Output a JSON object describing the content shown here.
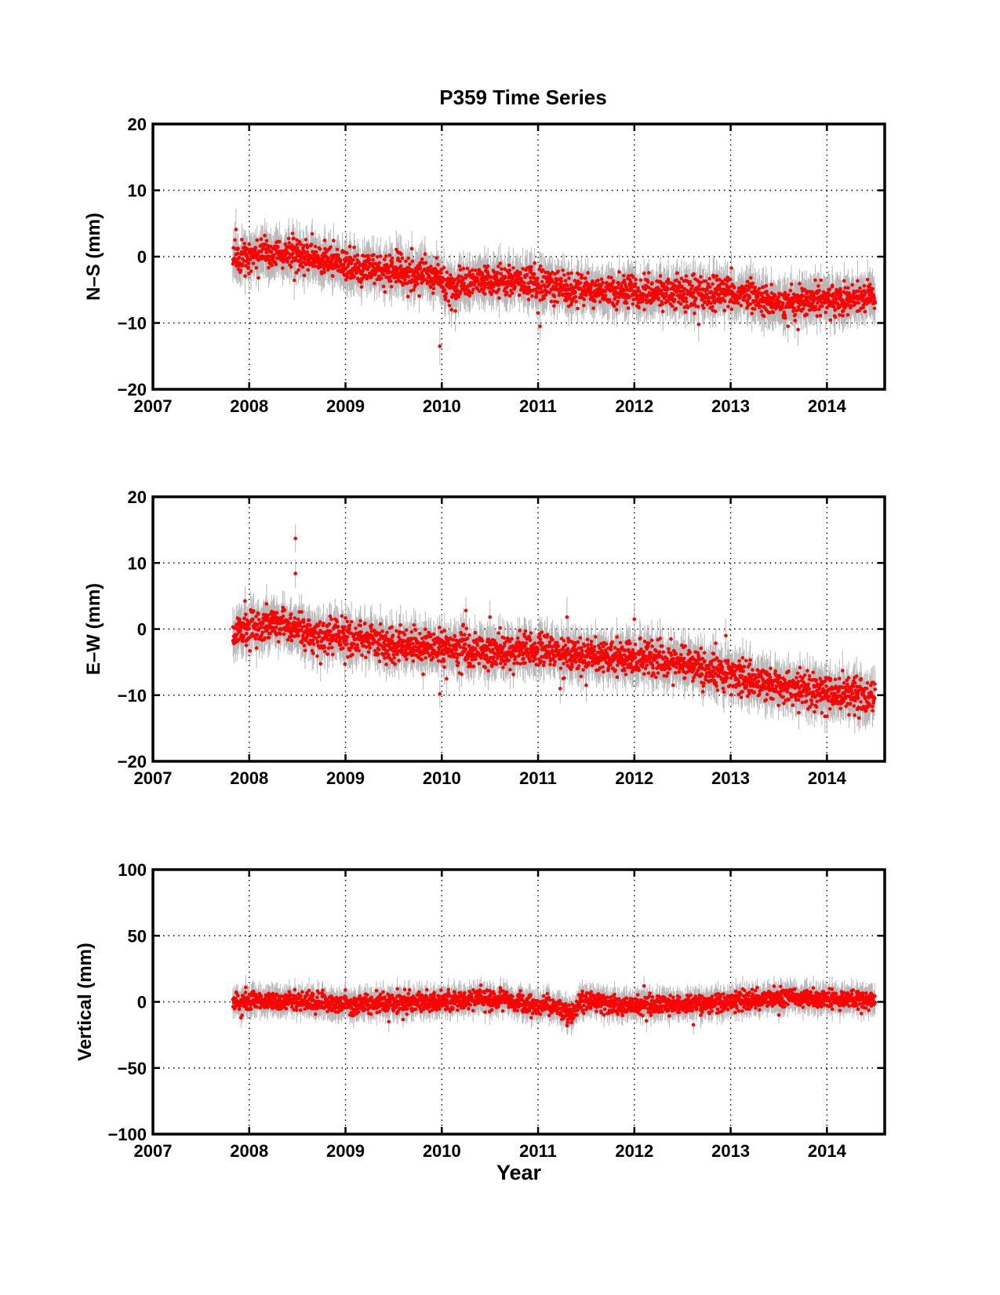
{
  "title": "P359 Time Series",
  "colors": {
    "points": "#ff0000",
    "error_bars": "#b8b8b8",
    "axes": "#000000",
    "grid": "#000000"
  },
  "chart_data": [
    {
      "type": "scatter",
      "ylabel": "N–S (mm)",
      "xlim": [
        2007,
        2014.6
      ],
      "ylim": [
        -20,
        20
      ],
      "xticks": [
        2007,
        2008,
        2009,
        2010,
        2011,
        2012,
        2013,
        2014
      ],
      "xtick_labels": [
        "2007",
        "2008",
        "2009",
        "2010",
        "2011",
        "2012",
        "2013",
        "2014"
      ],
      "yticks": [
        -20,
        -10,
        0,
        10,
        20
      ],
      "ytick_labels": [
        "−20",
        "−10",
        "0",
        "10",
        "20"
      ],
      "grid": "dotted",
      "error_bar_sigma": 2.5,
      "x_range": [
        2007.83,
        2014.5
      ],
      "trend": [
        [
          2007.83,
          0.0
        ],
        [
          2008.5,
          0.5
        ],
        [
          2009.0,
          -1.5
        ],
        [
          2009.95,
          -3.0
        ],
        [
          2010.05,
          -4.5
        ],
        [
          2010.5,
          -3.5
        ],
        [
          2011.0,
          -4.0
        ],
        [
          2011.5,
          -5.0
        ],
        [
          2012.0,
          -5.5
        ],
        [
          2012.5,
          -5.5
        ],
        [
          2013.0,
          -5.5
        ],
        [
          2013.5,
          -7.0
        ],
        [
          2014.0,
          -6.5
        ],
        [
          2014.5,
          -6.0
        ]
      ],
      "scatter": 1.2,
      "outliers": [
        [
          2009.98,
          -13.5
        ],
        [
          2011.02,
          -10.5
        ],
        [
          2011.0,
          -8.5
        ],
        [
          2013.7,
          -11.0
        ],
        [
          2008.45,
          3.5
        ],
        [
          2010.1,
          -8.0
        ]
      ]
    },
    {
      "type": "scatter",
      "ylabel": "E–W (mm)",
      "xlim": [
        2007,
        2014.6
      ],
      "ylim": [
        -20,
        20
      ],
      "xticks": [
        2007,
        2008,
        2009,
        2010,
        2011,
        2012,
        2013,
        2014
      ],
      "xtick_labels": [
        "2007",
        "2008",
        "2009",
        "2010",
        "2011",
        "2012",
        "2013",
        "2014"
      ],
      "yticks": [
        -20,
        -10,
        0,
        10,
        20
      ],
      "ytick_labels": [
        "−20",
        "−10",
        "0",
        "10",
        "20"
      ],
      "grid": "dotted",
      "error_bar_sigma": 2.5,
      "x_range": [
        2007.83,
        2014.5
      ],
      "trend": [
        [
          2007.83,
          -0.5
        ],
        [
          2008.3,
          1.0
        ],
        [
          2008.7,
          -1.0
        ],
        [
          2009.2,
          -1.5
        ],
        [
          2009.6,
          -2.5
        ],
        [
          2010.1,
          -3.0
        ],
        [
          2010.6,
          -3.5
        ],
        [
          2011.1,
          -3.0
        ],
        [
          2011.4,
          -4.5
        ],
        [
          2011.8,
          -4.0
        ],
        [
          2012.2,
          -4.5
        ],
        [
          2012.6,
          -5.5
        ],
        [
          2013.0,
          -7.0
        ],
        [
          2013.4,
          -8.0
        ],
        [
          2013.8,
          -9.5
        ],
        [
          2014.2,
          -9.5
        ],
        [
          2014.5,
          -10.5
        ]
      ],
      "scatter": 1.3,
      "outliers": [
        [
          2008.48,
          13.7
        ],
        [
          2008.48,
          8.4
        ],
        [
          2009.98,
          -9.8
        ],
        [
          2010.05,
          -7.5
        ],
        [
          2010.25,
          2.8
        ],
        [
          2010.5,
          1.8
        ],
        [
          2011.3,
          1.8
        ],
        [
          2012.0,
          1.5
        ],
        [
          2012.95,
          -1.0
        ],
        [
          2011.5,
          -8.5
        ]
      ]
    },
    {
      "type": "scatter",
      "ylabel": "Vertical (mm)",
      "xlabel": "Year",
      "xlim": [
        2007,
        2014.6
      ],
      "ylim": [
        -100,
        100
      ],
      "xticks": [
        2007,
        2008,
        2009,
        2010,
        2011,
        2012,
        2013,
        2014
      ],
      "xtick_labels": [
        "2007",
        "2008",
        "2009",
        "2010",
        "2011",
        "2012",
        "2013",
        "2014"
      ],
      "yticks": [
        -100,
        -50,
        0,
        50,
        100
      ],
      "ytick_labels": [
        "−100",
        "−50",
        "0",
        "50",
        "100"
      ],
      "grid": "dotted",
      "error_bar_sigma": 8,
      "x_range": [
        2007.83,
        2014.5
      ],
      "trend": [
        [
          2007.83,
          0.0
        ],
        [
          2008.5,
          0.5
        ],
        [
          2009.0,
          -2.0
        ],
        [
          2009.5,
          -1.0
        ],
        [
          2010.0,
          0.5
        ],
        [
          2010.6,
          3.0
        ],
        [
          2010.9,
          -2.0
        ],
        [
          2011.2,
          -4.0
        ],
        [
          2011.35,
          -10.0
        ],
        [
          2011.45,
          1.0
        ],
        [
          2011.8,
          -2.0
        ],
        [
          2012.3,
          -2.0
        ],
        [
          2012.8,
          -1.5
        ],
        [
          2013.2,
          1.5
        ],
        [
          2013.6,
          3.5
        ],
        [
          2014.0,
          2.5
        ],
        [
          2014.5,
          1.0
        ]
      ],
      "scatter": 3.5,
      "outliers": [
        [
          2009.45,
          -15.0
        ],
        [
          2011.3,
          -18.0
        ],
        [
          2012.1,
          12.0
        ],
        [
          2013.5,
          -10.0
        ]
      ]
    }
  ]
}
